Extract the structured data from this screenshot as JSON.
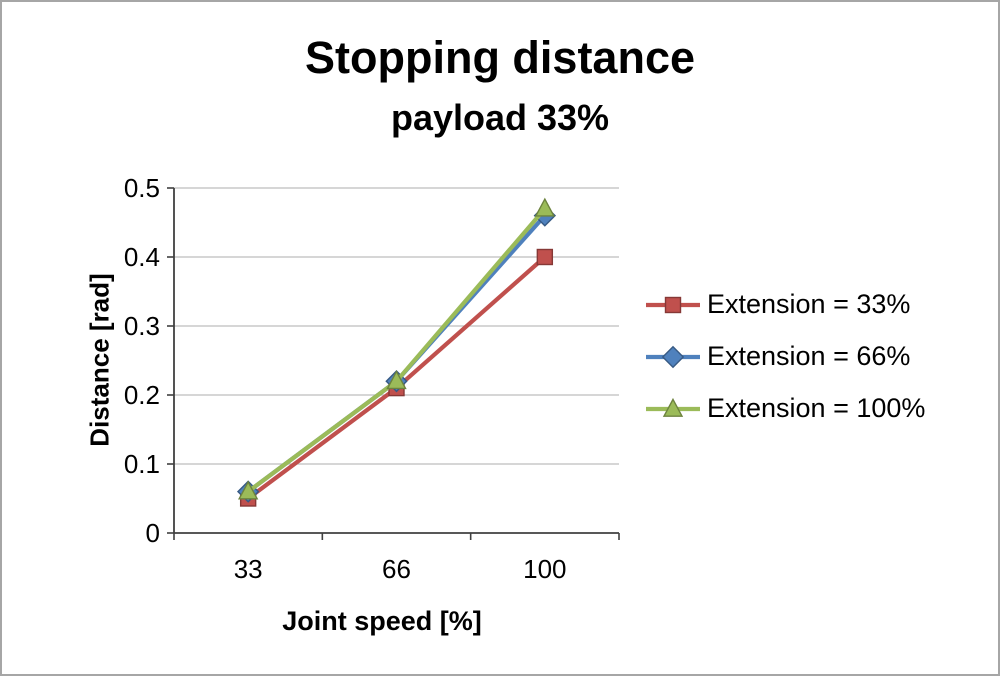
{
  "chart_data": {
    "type": "line",
    "title": "Stopping distance",
    "subtitle": "payload 33%",
    "xlabel": "Joint speed [%]",
    "ylabel": "Distance [rad]",
    "categories": [
      "33",
      "66",
      "100"
    ],
    "series": [
      {
        "name": "Extension = 33%",
        "marker": "square",
        "color": "#C0504D",
        "values": [
          0.05,
          0.21,
          0.4
        ]
      },
      {
        "name": "Extension = 66%",
        "marker": "diamond",
        "color": "#4F81BD",
        "values": [
          0.06,
          0.22,
          0.46
        ]
      },
      {
        "name": "Extension = 100%",
        "marker": "triangle",
        "color": "#9BBB59",
        "values": [
          0.06,
          0.22,
          0.47
        ]
      }
    ],
    "ylim": [
      0,
      0.5
    ],
    "yticks": [
      "0",
      "0.1",
      "0.2",
      "0.3",
      "0.4",
      "0.5"
    ],
    "grid": true,
    "legend_position": "right",
    "colors": {
      "grid": "#bdbdbd",
      "axis": "#404040",
      "text": "#000000"
    }
  }
}
